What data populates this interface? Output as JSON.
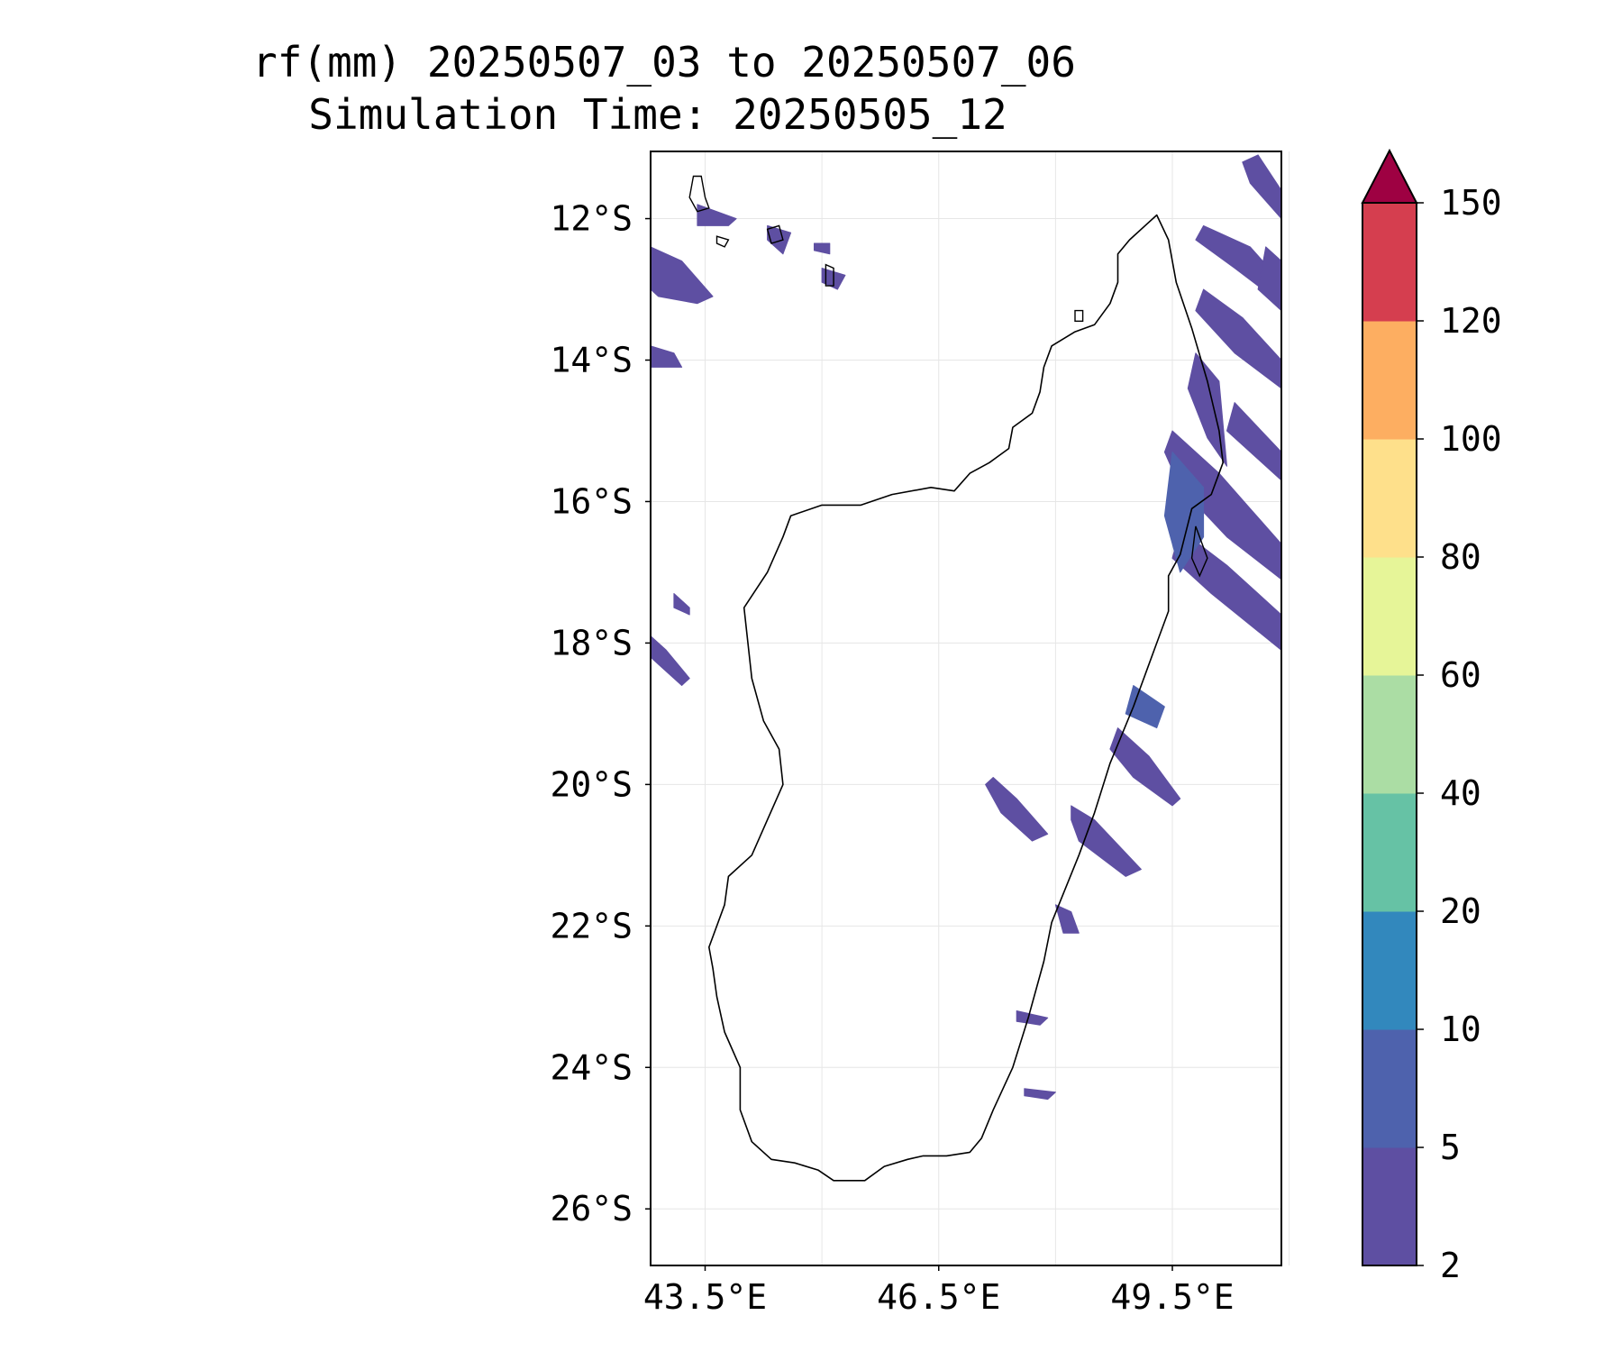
{
  "title": {
    "line1": "rf(mm) 20250507_03 to 20250507_06",
    "line2": "Simulation Time: 20250505_12"
  },
  "map": {
    "projection": "PlateCarree",
    "lon_range": [
      42.8,
      50.9
    ],
    "lat_range": [
      -26.8,
      -11.05
    ],
    "x_ticks": [
      {
        "value": 43.5,
        "label": "43.5°E"
      },
      {
        "value": 46.5,
        "label": "46.5°E"
      },
      {
        "value": 49.5,
        "label": "49.5°E"
      }
    ],
    "y_ticks": [
      {
        "value": -12,
        "label": "12°S"
      },
      {
        "value": -14,
        "label": "14°S"
      },
      {
        "value": -16,
        "label": "16°S"
      },
      {
        "value": -18,
        "label": "18°S"
      },
      {
        "value": -20,
        "label": "20°S"
      },
      {
        "value": -22,
        "label": "22°S"
      },
      {
        "value": -24,
        "label": "24°S"
      },
      {
        "value": -26,
        "label": "26°S"
      }
    ],
    "grid_lon": [
      43.5,
      45,
      46.5,
      48,
      49.5,
      51
    ],
    "grid": true,
    "coastline_color": "#000000"
  },
  "colorbar": {
    "label": "",
    "extend": "max",
    "extend_color": "#9e0142",
    "levels": [
      {
        "value": 2,
        "label": "2",
        "color": "#5e4fa2"
      },
      {
        "value": 5,
        "label": "5",
        "color": "#4e62ad"
      },
      {
        "value": 10,
        "label": "10",
        "color": "#3288bd"
      },
      {
        "value": 20,
        "label": "20",
        "color": "#66c2a5"
      },
      {
        "value": 40,
        "label": "40",
        "color": "#abdda4"
      },
      {
        "value": 60,
        "label": "60",
        "color": "#e6f598"
      },
      {
        "value": 80,
        "label": "80",
        "color": "#fee08b"
      },
      {
        "value": 100,
        "label": "100",
        "color": "#fdae61"
      },
      {
        "value": 120,
        "label": "120",
        "color": "#d53e4f"
      },
      {
        "value": 150,
        "label": "150",
        "color": null
      }
    ]
  },
  "coastline": {
    "madagascar": [
      [
        49.3,
        -11.95
      ],
      [
        49.45,
        -12.3
      ],
      [
        49.55,
        -12.9
      ],
      [
        49.75,
        -13.55
      ],
      [
        49.95,
        -14.3
      ],
      [
        50.1,
        -15.0
      ],
      [
        50.15,
        -15.45
      ],
      [
        50.0,
        -15.9
      ],
      [
        49.75,
        -16.1
      ],
      [
        49.6,
        -16.75
      ],
      [
        49.45,
        -17.05
      ],
      [
        49.45,
        -17.55
      ],
      [
        49.3,
        -18.0
      ],
      [
        49.0,
        -18.9
      ],
      [
        48.7,
        -19.7
      ],
      [
        48.5,
        -20.4
      ],
      [
        48.3,
        -21.0
      ],
      [
        47.95,
        -21.95
      ],
      [
        47.85,
        -22.5
      ],
      [
        47.65,
        -23.3
      ],
      [
        47.45,
        -24.0
      ],
      [
        47.2,
        -24.6
      ],
      [
        47.05,
        -25.0
      ],
      [
        46.9,
        -25.2
      ],
      [
        46.6,
        -25.25
      ],
      [
        46.3,
        -25.25
      ],
      [
        46.1,
        -25.3
      ],
      [
        45.8,
        -25.4
      ],
      [
        45.55,
        -25.6
      ],
      [
        45.15,
        -25.6
      ],
      [
        44.95,
        -25.45
      ],
      [
        44.65,
        -25.35
      ],
      [
        44.35,
        -25.3
      ],
      [
        44.1,
        -25.05
      ],
      [
        43.95,
        -24.6
      ],
      [
        43.95,
        -24.0
      ],
      [
        43.75,
        -23.5
      ],
      [
        43.65,
        -23.0
      ],
      [
        43.6,
        -22.6
      ],
      [
        43.55,
        -22.3
      ],
      [
        43.75,
        -21.7
      ],
      [
        43.8,
        -21.3
      ],
      [
        44.1,
        -21.0
      ],
      [
        44.3,
        -20.5
      ],
      [
        44.5,
        -20.0
      ],
      [
        44.45,
        -19.5
      ],
      [
        44.25,
        -19.1
      ],
      [
        44.1,
        -18.5
      ],
      [
        44.05,
        -18.0
      ],
      [
        44.0,
        -17.5
      ],
      [
        44.3,
        -17.0
      ],
      [
        44.5,
        -16.5
      ],
      [
        44.6,
        -16.2
      ],
      [
        45.0,
        -16.05
      ],
      [
        45.5,
        -16.05
      ],
      [
        45.9,
        -15.9
      ],
      [
        46.4,
        -15.8
      ],
      [
        46.7,
        -15.85
      ],
      [
        46.9,
        -15.6
      ],
      [
        47.15,
        -15.45
      ],
      [
        47.4,
        -15.25
      ],
      [
        47.45,
        -14.95
      ],
      [
        47.7,
        -14.75
      ],
      [
        47.8,
        -14.45
      ],
      [
        47.85,
        -14.1
      ],
      [
        47.95,
        -13.8
      ],
      [
        48.25,
        -13.6
      ],
      [
        48.5,
        -13.5
      ],
      [
        48.7,
        -13.2
      ],
      [
        48.8,
        -12.9
      ],
      [
        48.8,
        -12.5
      ],
      [
        48.95,
        -12.3
      ],
      [
        49.3,
        -11.95
      ]
    ],
    "islands": [
      [
        [
          43.35,
          -11.4
        ],
        [
          43.45,
          -11.4
        ],
        [
          43.5,
          -11.7
        ],
        [
          43.55,
          -11.85
        ],
        [
          43.4,
          -11.9
        ],
        [
          43.3,
          -11.7
        ],
        [
          43.35,
          -11.4
        ]
      ],
      [
        [
          44.3,
          -12.15
        ],
        [
          44.45,
          -12.1
        ],
        [
          44.5,
          -12.3
        ],
        [
          44.35,
          -12.35
        ],
        [
          44.3,
          -12.15
        ]
      ],
      [
        [
          45.05,
          -12.65
        ],
        [
          45.15,
          -12.7
        ],
        [
          45.15,
          -12.95
        ],
        [
          45.05,
          -12.95
        ],
        [
          45.05,
          -12.65
        ]
      ],
      [
        [
          43.65,
          -12.25
        ],
        [
          43.8,
          -12.3
        ],
        [
          43.75,
          -12.4
        ],
        [
          43.65,
          -12.35
        ],
        [
          43.65,
          -12.25
        ]
      ],
      [
        [
          49.8,
          -16.35
        ],
        [
          49.95,
          -16.8
        ],
        [
          49.85,
          -17.05
        ],
        [
          49.75,
          -16.8
        ],
        [
          49.8,
          -16.35
        ]
      ],
      [
        [
          48.25,
          -13.3
        ],
        [
          48.35,
          -13.3
        ],
        [
          48.35,
          -13.45
        ],
        [
          48.25,
          -13.45
        ],
        [
          48.25,
          -13.3
        ]
      ]
    ]
  },
  "rain_cells": [
    {
      "color_level": 0,
      "points": [
        [
          42.8,
          -12.4
        ],
        [
          43.2,
          -12.6
        ],
        [
          43.6,
          -13.1
        ],
        [
          43.4,
          -13.2
        ],
        [
          42.9,
          -13.1
        ],
        [
          42.8,
          -13.0
        ]
      ]
    },
    {
      "color_level": 0,
      "points": [
        [
          42.8,
          -13.8
        ],
        [
          43.1,
          -13.9
        ],
        [
          43.2,
          -14.1
        ],
        [
          42.8,
          -14.1
        ]
      ]
    },
    {
      "color_level": 0,
      "points": [
        [
          42.8,
          -17.9
        ],
        [
          43.0,
          -18.1
        ],
        [
          43.3,
          -18.5
        ],
        [
          43.2,
          -18.6
        ],
        [
          42.9,
          -18.3
        ],
        [
          42.8,
          -18.2
        ]
      ]
    },
    {
      "color_level": 0,
      "points": [
        [
          43.1,
          -17.3
        ],
        [
          43.3,
          -17.5
        ],
        [
          43.3,
          -17.6
        ],
        [
          43.1,
          -17.5
        ]
      ]
    },
    {
      "color_level": 0,
      "points": [
        [
          43.4,
          -11.8
        ],
        [
          43.9,
          -12.0
        ],
        [
          43.8,
          -12.1
        ],
        [
          43.4,
          -12.1
        ]
      ]
    },
    {
      "color_level": 0,
      "points": [
        [
          44.3,
          -12.1
        ],
        [
          44.6,
          -12.2
        ],
        [
          44.5,
          -12.5
        ],
        [
          44.3,
          -12.3
        ]
      ]
    },
    {
      "color_level": 0,
      "points": [
        [
          45.0,
          -12.7
        ],
        [
          45.3,
          -12.8
        ],
        [
          45.2,
          -13.0
        ],
        [
          45.0,
          -12.9
        ]
      ]
    },
    {
      "color_level": 0,
      "points": [
        [
          44.9,
          -12.35
        ],
        [
          45.1,
          -12.35
        ],
        [
          45.1,
          -12.5
        ],
        [
          44.9,
          -12.45
        ]
      ]
    },
    {
      "color_level": 0,
      "points": [
        [
          47.2,
          -19.9
        ],
        [
          47.5,
          -20.2
        ],
        [
          47.9,
          -20.7
        ],
        [
          47.7,
          -20.8
        ],
        [
          47.3,
          -20.4
        ],
        [
          47.1,
          -20.0
        ]
      ]
    },
    {
      "color_level": 0,
      "points": [
        [
          48.0,
          -21.7
        ],
        [
          48.2,
          -21.8
        ],
        [
          48.3,
          -22.1
        ],
        [
          48.1,
          -22.1
        ]
      ]
    },
    {
      "color_level": 0,
      "points": [
        [
          47.5,
          -23.2
        ],
        [
          47.9,
          -23.3
        ],
        [
          47.8,
          -23.4
        ],
        [
          47.5,
          -23.35
        ]
      ]
    },
    {
      "color_level": 0,
      "points": [
        [
          47.6,
          -24.3
        ],
        [
          48.0,
          -24.35
        ],
        [
          47.9,
          -24.45
        ],
        [
          47.6,
          -24.4
        ]
      ]
    },
    {
      "color_level": 0,
      "points": [
        [
          48.2,
          -20.3
        ],
        [
          48.5,
          -20.5
        ],
        [
          49.1,
          -21.2
        ],
        [
          48.9,
          -21.3
        ],
        [
          48.3,
          -20.8
        ],
        [
          48.2,
          -20.5
        ]
      ]
    },
    {
      "color_level": 0,
      "points": [
        [
          48.8,
          -19.2
        ],
        [
          49.2,
          -19.6
        ],
        [
          49.6,
          -20.2
        ],
        [
          49.5,
          -20.3
        ],
        [
          49.0,
          -19.9
        ],
        [
          48.7,
          -19.5
        ]
      ]
    },
    {
      "color_level": 1,
      "points": [
        [
          49.0,
          -18.6
        ],
        [
          49.4,
          -18.9
        ],
        [
          49.3,
          -19.2
        ],
        [
          48.9,
          -19.0
        ]
      ]
    },
    {
      "color_level": 0,
      "points": [
        [
          49.5,
          -15.0
        ],
        [
          50.1,
          -15.6
        ],
        [
          50.5,
          -16.1
        ],
        [
          50.9,
          -16.6
        ],
        [
          50.9,
          -17.1
        ],
        [
          50.2,
          -16.5
        ],
        [
          49.6,
          -15.8
        ],
        [
          49.4,
          -15.3
        ]
      ]
    },
    {
      "color_level": 0,
      "points": [
        [
          49.6,
          -16.4
        ],
        [
          50.2,
          -16.9
        ],
        [
          50.9,
          -17.6
        ],
        [
          50.9,
          -18.1
        ],
        [
          50.0,
          -17.3
        ],
        [
          49.5,
          -16.8
        ]
      ]
    },
    {
      "color_level": 1,
      "points": [
        [
          49.5,
          -15.3
        ],
        [
          49.9,
          -15.8
        ],
        [
          49.9,
          -16.5
        ],
        [
          49.6,
          -17.0
        ],
        [
          49.4,
          -16.2
        ]
      ]
    },
    {
      "color_level": 0,
      "points": [
        [
          49.9,
          -13.0
        ],
        [
          50.4,
          -13.4
        ],
        [
          50.9,
          -14.0
        ],
        [
          50.9,
          -14.4
        ],
        [
          50.3,
          -13.9
        ],
        [
          49.8,
          -13.3
        ]
      ]
    },
    {
      "color_level": 0,
      "points": [
        [
          49.8,
          -13.9
        ],
        [
          50.1,
          -14.3
        ],
        [
          50.2,
          -15.5
        ],
        [
          49.95,
          -15.1
        ],
        [
          49.7,
          -14.4
        ]
      ]
    },
    {
      "color_level": 0,
      "points": [
        [
          50.3,
          -14.6
        ],
        [
          50.9,
          -15.3
        ],
        [
          50.9,
          -15.7
        ],
        [
          50.2,
          -15.0
        ]
      ]
    },
    {
      "color_level": 0,
      "points": [
        [
          49.9,
          -12.1
        ],
        [
          50.5,
          -12.4
        ],
        [
          50.9,
          -12.9
        ],
        [
          50.9,
          -13.2
        ],
        [
          50.3,
          -12.7
        ],
        [
          49.8,
          -12.3
        ]
      ]
    },
    {
      "color_level": 0,
      "points": [
        [
          50.6,
          -11.1
        ],
        [
          50.9,
          -11.6
        ],
        [
          50.9,
          -12.0
        ],
        [
          50.5,
          -11.5
        ],
        [
          50.4,
          -11.2
        ]
      ]
    },
    {
      "color_level": 0,
      "points": [
        [
          50.7,
          -12.4
        ],
        [
          50.9,
          -12.6
        ],
        [
          50.9,
          -13.3
        ],
        [
          50.6,
          -13.0
        ]
      ]
    }
  ]
}
